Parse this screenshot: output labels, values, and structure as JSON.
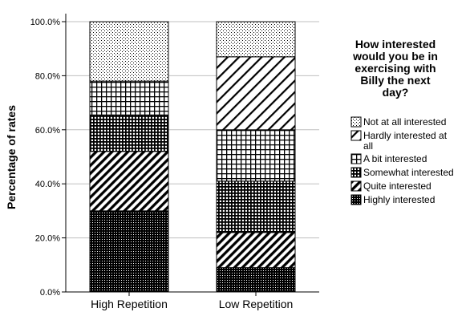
{
  "chart_data": {
    "type": "bar",
    "stacked": true,
    "categories": [
      "High Repetition",
      "Low Repetition"
    ],
    "ylabel": "Percentage of rates",
    "xlabel": "",
    "ylim": [
      0,
      100
    ],
    "yticks": [
      "0.0%",
      "20.0%",
      "40.0%",
      "60.0%",
      "80.0%",
      "100.0%"
    ],
    "grid": true,
    "legend": {
      "title_lines": [
        "How interested",
        "would you be in",
        "exercising  with",
        "Billy the next",
        "day?"
      ],
      "placement": "right"
    },
    "series": [
      {
        "name": "Highly interested",
        "label_lines": [
          "Highly interested"
        ],
        "pattern": "dense-checker",
        "values": [
          30,
          9
        ]
      },
      {
        "name": "Quite interested",
        "label_lines": [
          "Quite interested"
        ],
        "pattern": "diagonal-dense",
        "values": [
          22,
          13
        ]
      },
      {
        "name": "Somewhat interested",
        "label_lines": [
          "Somewhat interested"
        ],
        "pattern": "grid-dark",
        "values": [
          13.5,
          19
        ]
      },
      {
        "name": "A bit interested",
        "label_lines": [
          "A bit interested"
        ],
        "pattern": "grid-light",
        "values": [
          12.5,
          19
        ]
      },
      {
        "name": "Hardly interested at all",
        "label_lines": [
          "Hardly interested at",
          "all"
        ],
        "pattern": "diagonal-sparse",
        "values": [
          0,
          27
        ]
      },
      {
        "name": "Not at all interested",
        "label_lines": [
          "Not at all interested"
        ],
        "pattern": "dots",
        "values": [
          22,
          13
        ]
      }
    ]
  }
}
